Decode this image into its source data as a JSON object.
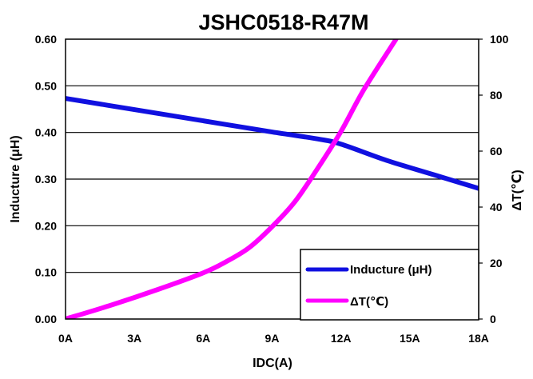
{
  "chart_data": {
    "type": "line",
    "title": "JSHC0518-R47M",
    "xlabel": "IDC(A)",
    "ylabel": "Inducture (μH)",
    "y2label": "ΔT(℃)",
    "x_ticks": [
      "0A",
      "3A",
      "6A",
      "9A",
      "12A",
      "15A",
      "18A"
    ],
    "y_ticks": [
      "0.00",
      "0.10",
      "0.20",
      "0.30",
      "0.40",
      "0.50",
      "0.60"
    ],
    "y2_ticks": [
      "0",
      "20",
      "40",
      "60",
      "80",
      "100"
    ],
    "xlim": [
      0,
      18
    ],
    "ylim": [
      0,
      0.6
    ],
    "y2lim": [
      0,
      100
    ],
    "grid": "horizontal",
    "legend_position": "bottom-right",
    "series": [
      {
        "name": "Inducture (μH)",
        "axis": "left",
        "color": "#1010e0",
        "x": [
          0,
          3,
          6,
          9,
          11,
          12,
          14,
          16,
          18
        ],
        "y": [
          0.473,
          0.449,
          0.425,
          0.401,
          0.386,
          0.375,
          0.34,
          0.31,
          0.28
        ]
      },
      {
        "name": "ΔT(℃)",
        "axis": "right",
        "color": "#ff00ff",
        "x": [
          0,
          2,
          4,
          6,
          7,
          8,
          9,
          10,
          11,
          12,
          13,
          14.4
        ],
        "y": [
          0,
          5,
          10.5,
          16.5,
          20.5,
          25.5,
          33,
          42,
          54,
          67,
          82,
          100
        ]
      }
    ]
  }
}
